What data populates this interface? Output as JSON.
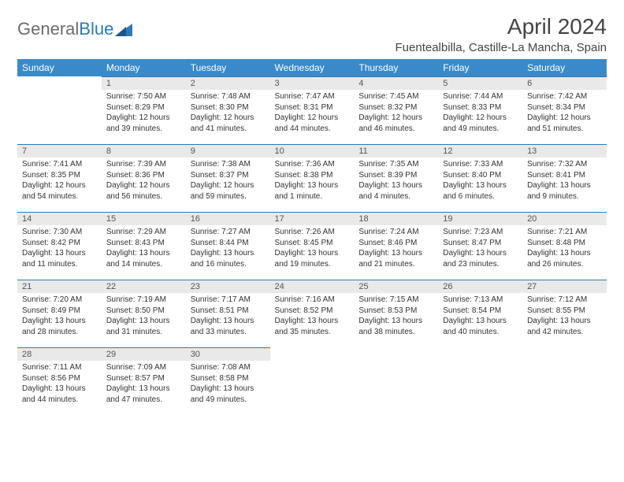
{
  "brand": {
    "part1": "General",
    "part2": "Blue"
  },
  "title": "April 2024",
  "location": "Fuentealbilla, Castille-La Mancha, Spain",
  "colors": {
    "header_bg": "#3a8aca",
    "header_text": "#ffffff",
    "daynum_bg": "#e9e9e9",
    "rule": "#2a7ab8",
    "text": "#333333",
    "brand_gray": "#6b6b6b",
    "brand_blue": "#2a7ab8"
  },
  "weekdays": [
    "Sunday",
    "Monday",
    "Tuesday",
    "Wednesday",
    "Thursday",
    "Friday",
    "Saturday"
  ],
  "weeks": [
    [
      null,
      {
        "n": "1",
        "sr": "7:50 AM",
        "ss": "8:29 PM",
        "d1": "12 hours",
        "d2": "and 39 minutes."
      },
      {
        "n": "2",
        "sr": "7:48 AM",
        "ss": "8:30 PM",
        "d1": "12 hours",
        "d2": "and 41 minutes."
      },
      {
        "n": "3",
        "sr": "7:47 AM",
        "ss": "8:31 PM",
        "d1": "12 hours",
        "d2": "and 44 minutes."
      },
      {
        "n": "4",
        "sr": "7:45 AM",
        "ss": "8:32 PM",
        "d1": "12 hours",
        "d2": "and 46 minutes."
      },
      {
        "n": "5",
        "sr": "7:44 AM",
        "ss": "8:33 PM",
        "d1": "12 hours",
        "d2": "and 49 minutes."
      },
      {
        "n": "6",
        "sr": "7:42 AM",
        "ss": "8:34 PM",
        "d1": "12 hours",
        "d2": "and 51 minutes."
      }
    ],
    [
      {
        "n": "7",
        "sr": "7:41 AM",
        "ss": "8:35 PM",
        "d1": "12 hours",
        "d2": "and 54 minutes."
      },
      {
        "n": "8",
        "sr": "7:39 AM",
        "ss": "8:36 PM",
        "d1": "12 hours",
        "d2": "and 56 minutes."
      },
      {
        "n": "9",
        "sr": "7:38 AM",
        "ss": "8:37 PM",
        "d1": "12 hours",
        "d2": "and 59 minutes."
      },
      {
        "n": "10",
        "sr": "7:36 AM",
        "ss": "8:38 PM",
        "d1": "13 hours",
        "d2": "and 1 minute."
      },
      {
        "n": "11",
        "sr": "7:35 AM",
        "ss": "8:39 PM",
        "d1": "13 hours",
        "d2": "and 4 minutes."
      },
      {
        "n": "12",
        "sr": "7:33 AM",
        "ss": "8:40 PM",
        "d1": "13 hours",
        "d2": "and 6 minutes."
      },
      {
        "n": "13",
        "sr": "7:32 AM",
        "ss": "8:41 PM",
        "d1": "13 hours",
        "d2": "and 9 minutes."
      }
    ],
    [
      {
        "n": "14",
        "sr": "7:30 AM",
        "ss": "8:42 PM",
        "d1": "13 hours",
        "d2": "and 11 minutes."
      },
      {
        "n": "15",
        "sr": "7:29 AM",
        "ss": "8:43 PM",
        "d1": "13 hours",
        "d2": "and 14 minutes."
      },
      {
        "n": "16",
        "sr": "7:27 AM",
        "ss": "8:44 PM",
        "d1": "13 hours",
        "d2": "and 16 minutes."
      },
      {
        "n": "17",
        "sr": "7:26 AM",
        "ss": "8:45 PM",
        "d1": "13 hours",
        "d2": "and 19 minutes."
      },
      {
        "n": "18",
        "sr": "7:24 AM",
        "ss": "8:46 PM",
        "d1": "13 hours",
        "d2": "and 21 minutes."
      },
      {
        "n": "19",
        "sr": "7:23 AM",
        "ss": "8:47 PM",
        "d1": "13 hours",
        "d2": "and 23 minutes."
      },
      {
        "n": "20",
        "sr": "7:21 AM",
        "ss": "8:48 PM",
        "d1": "13 hours",
        "d2": "and 26 minutes."
      }
    ],
    [
      {
        "n": "21",
        "sr": "7:20 AM",
        "ss": "8:49 PM",
        "d1": "13 hours",
        "d2": "and 28 minutes."
      },
      {
        "n": "22",
        "sr": "7:19 AM",
        "ss": "8:50 PM",
        "d1": "13 hours",
        "d2": "and 31 minutes."
      },
      {
        "n": "23",
        "sr": "7:17 AM",
        "ss": "8:51 PM",
        "d1": "13 hours",
        "d2": "and 33 minutes."
      },
      {
        "n": "24",
        "sr": "7:16 AM",
        "ss": "8:52 PM",
        "d1": "13 hours",
        "d2": "and 35 minutes."
      },
      {
        "n": "25",
        "sr": "7:15 AM",
        "ss": "8:53 PM",
        "d1": "13 hours",
        "d2": "and 38 minutes."
      },
      {
        "n": "26",
        "sr": "7:13 AM",
        "ss": "8:54 PM",
        "d1": "13 hours",
        "d2": "and 40 minutes."
      },
      {
        "n": "27",
        "sr": "7:12 AM",
        "ss": "8:55 PM",
        "d1": "13 hours",
        "d2": "and 42 minutes."
      }
    ],
    [
      {
        "n": "28",
        "sr": "7:11 AM",
        "ss": "8:56 PM",
        "d1": "13 hours",
        "d2": "and 44 minutes."
      },
      {
        "n": "29",
        "sr": "7:09 AM",
        "ss": "8:57 PM",
        "d1": "13 hours",
        "d2": "and 47 minutes."
      },
      {
        "n": "30",
        "sr": "7:08 AM",
        "ss": "8:58 PM",
        "d1": "13 hours",
        "d2": "and 49 minutes."
      },
      null,
      null,
      null,
      null
    ]
  ],
  "labels": {
    "sunrise": "Sunrise:",
    "sunset": "Sunset:",
    "daylight": "Daylight:"
  }
}
